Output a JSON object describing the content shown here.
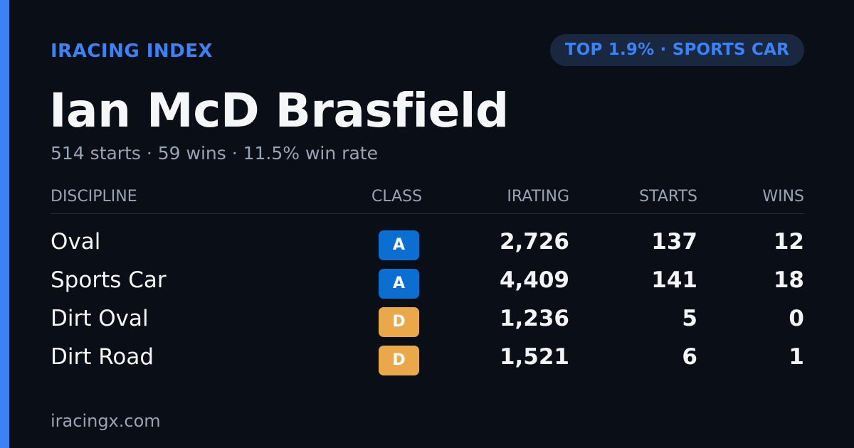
{
  "header": {
    "brand": "IRACING INDEX",
    "badge": "TOP 1.9% · SPORTS CAR"
  },
  "driver": {
    "name": "Ian McD Brasfield",
    "summary": "514 starts · 59 wins · 11.5% win rate"
  },
  "table": {
    "columns": {
      "discipline": "DISCIPLINE",
      "class": "CLASS",
      "irating": "IRATING",
      "starts": "STARTS",
      "wins": "WINS"
    },
    "rows": [
      {
        "discipline": "Oval",
        "class": "A",
        "irating": "2,726",
        "starts": "137",
        "wins": "12"
      },
      {
        "discipline": "Sports Car",
        "class": "A",
        "irating": "4,409",
        "starts": "141",
        "wins": "18"
      },
      {
        "discipline": "Dirt Oval",
        "class": "D",
        "irating": "1,236",
        "starts": "5",
        "wins": "0"
      },
      {
        "discipline": "Dirt Road",
        "class": "D",
        "irating": "1,521",
        "starts": "6",
        "wins": "1"
      }
    ]
  },
  "class_colors": {
    "A": "#0a6fd1",
    "D": "#e9a94b"
  },
  "colors": {
    "accent": "#3b82f6",
    "background": "#0a0e17",
    "muted": "#9aa3b2"
  },
  "footer": {
    "site": "iracingx.com"
  }
}
